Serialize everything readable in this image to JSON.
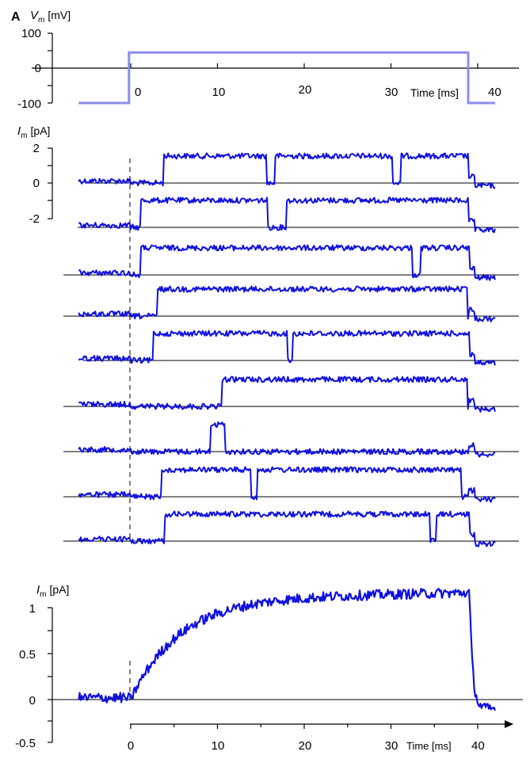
{
  "panel_label": "A",
  "chart_data": [
    {
      "type": "line",
      "name": "voltage-protocol",
      "ylabel": {
        "symbol": "V",
        "sub": "m",
        "unit": "[mV]"
      },
      "yticks": [
        "100",
        "0",
        "-100"
      ],
      "xticks": [
        "0",
        "10",
        "20",
        "30",
        "40"
      ],
      "xlabel": "Time [ms]",
      "color": "#8c8cf0",
      "xlim": [
        -6,
        42
      ],
      "ylim": [
        -100,
        100
      ],
      "series": [
        {
          "x": [
            -6,
            -0.2,
            -0.2,
            38.9,
            38.9,
            42
          ],
          "y": [
            -100,
            -100,
            45,
            45,
            -100,
            -100
          ]
        }
      ]
    },
    {
      "type": "line",
      "name": "single-channel-sweeps",
      "ylabel": {
        "symbol": "I",
        "sub": "m",
        "unit": "[pA]"
      },
      "yticks": [
        "2",
        "0",
        "-2"
      ],
      "color": "#1010e0",
      "open_level": 1.4,
      "sweeps": [
        {
          "closed_x": [
            -6,
            0.8
          ],
          "open_x": [
            [
              3.8,
              15.6
            ],
            [
              16.6,
              30.2
            ],
            [
              31.1,
              38.9
            ]
          ]
        },
        {
          "closed_x": [
            -6,
            1.1
          ],
          "open_x": [
            [
              1.1,
              15.8
            ],
            [
              17.9,
              38.9
            ]
          ]
        },
        {
          "closed_x": [
            -6,
            0.9
          ],
          "open_x": [
            [
              1.2,
              32.5
            ],
            [
              33.4,
              39.1
            ]
          ]
        },
        {
          "closed_x": [
            -6,
            1.8
          ],
          "open_x": [
            [
              3.1,
              38.8
            ]
          ]
        },
        {
          "closed_x": [
            -6,
            2.5
          ],
          "open_x": [
            [
              2.6,
              18.0
            ],
            [
              18.6,
              39.0
            ]
          ]
        },
        {
          "closed_x": [
            -6,
            10.5
          ],
          "open_x": [
            [
              10.5,
              38.8
            ]
          ]
        },
        {
          "closed_x": [
            -6,
            8.9
          ],
          "open_x": [
            [
              9.2,
              10.8
            ]
          ]
        },
        {
          "closed_x": [
            -6,
            3.6
          ],
          "open_x": [
            [
              3.6,
              13.9
            ],
            [
              14.6,
              38.1
            ]
          ]
        },
        {
          "closed_x": [
            -6,
            3.9
          ],
          "open_x": [
            [
              3.9,
              34.5
            ],
            [
              35.2,
              39.0
            ]
          ]
        }
      ]
    },
    {
      "type": "line",
      "name": "ensemble-average",
      "ylabel": {
        "symbol": "I",
        "sub": "m",
        "unit": "[pA]"
      },
      "yticks": [
        "1",
        "0.5",
        "0",
        "-0.5"
      ],
      "xticks": [
        "0",
        "10",
        "20",
        "30",
        "40"
      ],
      "xlabel": "Time [ms]",
      "color": "#1010e0",
      "xlim": [
        -6,
        42
      ],
      "ylim": [
        -0.5,
        1
      ],
      "activation_tau_ms": 5.5,
      "plateau": 1.1,
      "deactivation_at_ms": 39.1
    }
  ]
}
